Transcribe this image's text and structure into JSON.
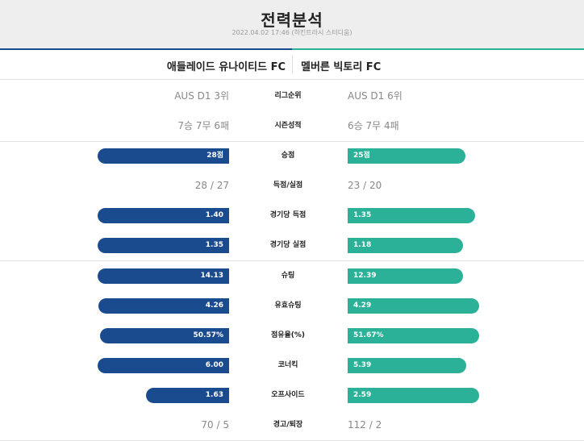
{
  "header": {
    "title": "전력분석",
    "subtitle": "2022.04.02 17:46 (하킨트라시 스터디움)"
  },
  "teams": {
    "home": "애들레이드 유나이티드 FC",
    "away": "멜버른 빅토리 FC"
  },
  "colors": {
    "home": "#1b4b8f",
    "away": "#2ab197"
  },
  "stats": {
    "league_rank": {
      "label": "리그순위",
      "home": "AUS D1 3위",
      "away": "AUS D1 6위"
    },
    "season_record": {
      "label": "시즌성적",
      "home": "7승 7무 6패",
      "away": "6승 7무 4패"
    },
    "points": {
      "label": "승점",
      "home": "28점",
      "away": "25점",
      "home_value": 28,
      "away_value": 25
    },
    "goals": {
      "label": "득점/실점",
      "home": "28 / 27",
      "away": "23 / 20"
    },
    "goals_per_game": {
      "label": "경기당 득점",
      "home": "1.40",
      "away": "1.35",
      "home_value": 1.4,
      "away_value": 1.35
    },
    "conceded_per_game": {
      "label": "경기당 실점",
      "home": "1.35",
      "away": "1.18",
      "home_value": 1.35,
      "away_value": 1.18
    },
    "shots": {
      "label": "슈팅",
      "home": "14.13",
      "away": "12.39",
      "home_value": 14.13,
      "away_value": 12.39
    },
    "shots_on_target": {
      "label": "유효슈팅",
      "home": "4.26",
      "away": "4.29",
      "home_value": 4.26,
      "away_value": 4.29
    },
    "possession": {
      "label": "점유율(%)",
      "home": "50.57%",
      "away": "51.67%",
      "home_value": 50.57,
      "away_value": 51.67
    },
    "corners": {
      "label": "코너킥",
      "home": "6.00",
      "away": "5.39",
      "home_value": 6.0,
      "away_value": 5.39
    },
    "offsides": {
      "label": "오프사이드",
      "home": "1.63",
      "away": "2.59",
      "home_value": 1.63,
      "away_value": 2.59
    },
    "cards": {
      "label": "경고/퇴장",
      "home": "70 / 5",
      "away": "112 / 2"
    }
  }
}
